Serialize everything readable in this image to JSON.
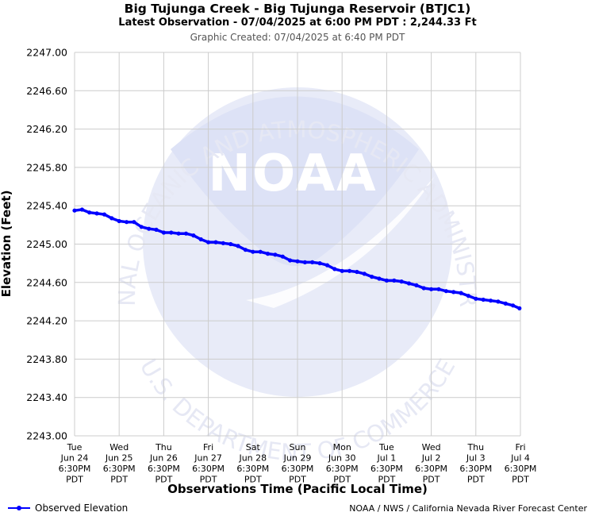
{
  "header": {
    "title": "Big Tujunga Creek - Big Tujunga Reservoir (BTJC1)",
    "latest": "Latest Observation - 07/04/2025 at 6:00 PM PDT : 2,244.33 Ft",
    "created": "Graphic Created: 07/04/2025 at 6:40 PM PDT"
  },
  "watermark": {
    "logo_text": "NOAA",
    "ring_top": "NATIONAL OCEANIC AND ATMOSPHERIC ADMINISTRATION",
    "ring_bottom": "U.S. DEPARTMENT OF COMMERCE"
  },
  "legend": {
    "label": "Observed Elevation"
  },
  "footer": {
    "credit": "NOAA / NWS / California Nevada River Forecast Center"
  },
  "colors": {
    "series": "#0000ff",
    "grid": "#cccccc",
    "watermark": "#e8ebf8"
  },
  "chart_data": {
    "type": "line",
    "xlabel": "Observations Time (Pacific Local Time)",
    "ylabel": "Elevation (Feet)",
    "ylim": [
      2243.0,
      2247.0
    ],
    "xlim_days": [
      0,
      10
    ],
    "y_ticks": [
      "2247.00",
      "2246.60",
      "2246.20",
      "2245.80",
      "2245.40",
      "2245.00",
      "2244.60",
      "2244.20",
      "2243.80",
      "2243.40",
      "2243.00"
    ],
    "x_ticks": [
      [
        "Tue",
        "Jun 24",
        "6:30PM",
        "PDT"
      ],
      [
        "Wed",
        "Jun 25",
        "6:30PM",
        "PDT"
      ],
      [
        "Thu",
        "Jun 26",
        "6:30PM",
        "PDT"
      ],
      [
        "Fri",
        "Jun 27",
        "6:30PM",
        "PDT"
      ],
      [
        "Sat",
        "Jun 28",
        "6:30PM",
        "PDT"
      ],
      [
        "Sun",
        "Jun 29",
        "6:30PM",
        "PDT"
      ],
      [
        "Mon",
        "Jun 30",
        "6:30PM",
        "PDT"
      ],
      [
        "Tue",
        "Jul 1",
        "6:30PM",
        "PDT"
      ],
      [
        "Wed",
        "Jul 2",
        "6:30PM",
        "PDT"
      ],
      [
        "Thu",
        "Jul 3",
        "6:30PM",
        "PDT"
      ],
      [
        "Fri",
        "Jul 4",
        "6:30PM",
        "PDT"
      ]
    ],
    "grid": true,
    "series": [
      {
        "name": "Observed Elevation",
        "x": [
          "06/24 18:30",
          "06/24 22:30",
          "06/25 02:30",
          "06/25 06:30",
          "06/25 10:30",
          "06/25 14:30",
          "06/25 18:30",
          "06/25 22:30",
          "06/26 02:30",
          "06/26 06:30",
          "06/26 10:30",
          "06/26 14:30",
          "06/26 18:30",
          "06/26 22:30",
          "06/27 02:30",
          "06/27 06:30",
          "06/27 10:30",
          "06/27 14:30",
          "06/27 18:30",
          "06/27 22:30",
          "06/28 02:30",
          "06/28 06:30",
          "06/28 10:30",
          "06/28 14:30",
          "06/28 18:30",
          "06/28 22:30",
          "06/29 02:30",
          "06/29 06:30",
          "06/29 10:30",
          "06/29 14:30",
          "06/29 18:30",
          "06/29 22:30",
          "06/30 02:30",
          "06/30 06:30",
          "06/30 10:30",
          "06/30 14:30",
          "06/30 18:30",
          "06/30 22:30",
          "07/01 02:30",
          "07/01 06:30",
          "07/01 10:30",
          "07/01 14:30",
          "07/01 18:30",
          "07/01 22:30",
          "07/02 02:30",
          "07/02 06:30",
          "07/02 10:30",
          "07/02 14:30",
          "07/02 18:30",
          "07/02 22:30",
          "07/03 02:30",
          "07/03 06:30",
          "07/03 10:30",
          "07/03 14:30",
          "07/03 18:30",
          "07/03 22:30",
          "07/04 02:30",
          "07/04 06:30",
          "07/04 10:30",
          "07/04 14:30",
          "07/04 18:00"
        ],
        "values": [
          2245.35,
          2245.36,
          2245.33,
          2245.32,
          2245.31,
          2245.27,
          2245.24,
          2245.23,
          2245.23,
          2245.18,
          2245.16,
          2245.15,
          2245.12,
          2245.12,
          2245.11,
          2245.11,
          2245.09,
          2245.05,
          2245.02,
          2245.02,
          2245.01,
          2245.0,
          2244.98,
          2244.94,
          2244.92,
          2244.92,
          2244.9,
          2244.89,
          2244.87,
          2244.83,
          2244.82,
          2244.81,
          2244.81,
          2244.8,
          2244.78,
          2244.74,
          2244.72,
          2244.72,
          2244.71,
          2244.69,
          2244.66,
          2244.64,
          2244.62,
          2244.62,
          2244.61,
          2244.59,
          2244.57,
          2244.54,
          2244.53,
          2244.53,
          2244.51,
          2244.5,
          2244.49,
          2244.46,
          2244.43,
          2244.42,
          2244.41,
          2244.4,
          2244.38,
          2244.36,
          2244.33
        ]
      }
    ]
  }
}
